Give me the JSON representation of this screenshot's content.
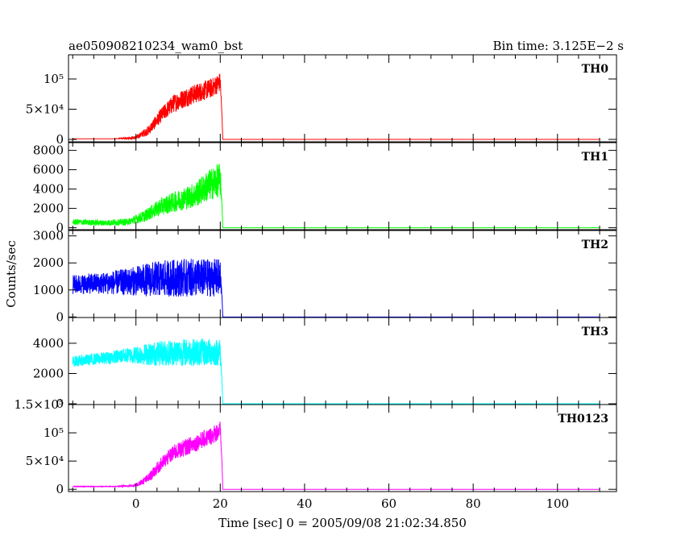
{
  "header": {
    "left_title": "ae050908210234_wam0_bst",
    "right_title": "Bin time: 3.125E−2 s"
  },
  "axes": {
    "xlabel": "Time [sec] 0 = 2005/09/08 21:02:34.850",
    "ylabel": "Counts/sec"
  },
  "chart_data": {
    "type": "line",
    "title": "ae050908210234_wam0_bst",
    "bin_time": "3.125E-2 s",
    "xlabel": "Time [sec] 0 = 2005/09/08 21:02:34.850",
    "ylabel": "Counts/sec",
    "xlim": [
      -16,
      114
    ],
    "x_ticks": [
      0,
      20,
      40,
      60,
      80,
      100
    ],
    "x_tick_labels": [
      "0",
      "20",
      "40",
      "60",
      "80",
      "100"
    ],
    "grid": false,
    "legend": "none (panel labels at top-right of each panel)",
    "series": [
      {
        "name": "TH0",
        "color": "#ff0000",
        "ylim": [
          -4000,
          140000
        ],
        "y_ticks": [
          0,
          50000,
          100000
        ],
        "y_tick_labels": [
          "0",
          "5×10⁴",
          "10⁵"
        ],
        "x": [
          -15,
          -5,
          0,
          3,
          6,
          9,
          12,
          15,
          18,
          20,
          20.4,
          20.6,
          30,
          50,
          70,
          90,
          110
        ],
        "y": [
          1000,
          1000,
          3000,
          15000,
          40000,
          60000,
          70000,
          78000,
          85000,
          95000,
          40000,
          0,
          0,
          0,
          0,
          0,
          0
        ],
        "noise": [
          0,
          0,
          3000,
          8000,
          12000,
          15000,
          16000,
          16000,
          16000,
          16000,
          0,
          0,
          0,
          0,
          0,
          0,
          0
        ]
      },
      {
        "name": "TH1",
        "color": "#00ff00",
        "ylim": [
          -200,
          8800
        ],
        "y_ticks": [
          0,
          2000,
          4000,
          6000,
          8000
        ],
        "y_tick_labels": [
          "0",
          "2000",
          "4000",
          "6000",
          "8000"
        ],
        "x": [
          -15,
          -8,
          -2,
          2,
          6,
          10,
          14,
          17,
          20,
          20.4,
          20.6,
          30,
          50,
          70,
          90,
          110
        ],
        "y": [
          600,
          500,
          600,
          1200,
          2200,
          2800,
          3400,
          4300,
          5000,
          2500,
          0,
          0,
          0,
          0,
          0,
          0
        ],
        "noise": [
          300,
          300,
          350,
          600,
          900,
          1100,
          1300,
          1600,
          1800,
          0,
          0,
          0,
          0,
          0,
          0,
          0
        ]
      },
      {
        "name": "TH2",
        "color": "#0000ff",
        "ylim": [
          -20,
          3200
        ],
        "y_ticks": [
          0,
          1000,
          2000,
          3000
        ],
        "y_tick_labels": [
          "0",
          "1000",
          "2000",
          "3000"
        ],
        "x": [
          -15,
          -8,
          -2,
          4,
          10,
          16,
          20,
          20.4,
          20.6,
          30,
          50,
          70,
          90,
          110
        ],
        "y": [
          1200,
          1250,
          1300,
          1400,
          1450,
          1450,
          1450,
          800,
          0,
          0,
          0,
          0,
          0,
          0
        ],
        "noise": [
          350,
          400,
          500,
          650,
          700,
          700,
          700,
          0,
          0,
          0,
          0,
          0,
          0,
          0
        ]
      },
      {
        "name": "TH3",
        "color": "#00ffff",
        "ylim": [
          -50,
          5700
        ],
        "y_ticks": [
          0,
          2000,
          4000
        ],
        "y_tick_labels": [
          "0",
          "2000",
          "4000"
        ],
        "x": [
          -15,
          -8,
          -2,
          4,
          10,
          16,
          20,
          20.4,
          20.6,
          30,
          50,
          70,
          90,
          110
        ],
        "y": [
          2800,
          3000,
          3200,
          3300,
          3400,
          3400,
          3400,
          1500,
          0,
          0,
          0,
          0,
          0,
          0
        ],
        "noise": [
          350,
          400,
          500,
          800,
          900,
          900,
          900,
          0,
          0,
          0,
          0,
          0,
          0,
          0
        ]
      },
      {
        "name": "TH0123",
        "color": "#ff00ff",
        "ylim": [
          -4000,
          150000
        ],
        "y_ticks": [
          0,
          50000,
          100000,
          150000
        ],
        "y_tick_labels": [
          "0",
          "5×10⁴",
          "10⁵",
          "1.5×10⁵"
        ],
        "x": [
          -15,
          -5,
          0,
          3,
          6,
          9,
          12,
          15,
          18,
          20,
          20.4,
          20.6,
          30,
          50,
          70,
          90,
          110
        ],
        "y": [
          5000,
          5000,
          7000,
          20000,
          45000,
          65000,
          75000,
          85000,
          95000,
          105000,
          50000,
          0,
          0,
          0,
          0,
          0,
          0
        ],
        "noise": [
          500,
          500,
          3000,
          8000,
          12000,
          14000,
          15000,
          15000,
          16000,
          16000,
          0,
          0,
          0,
          0,
          0,
          0,
          0
        ]
      }
    ]
  }
}
